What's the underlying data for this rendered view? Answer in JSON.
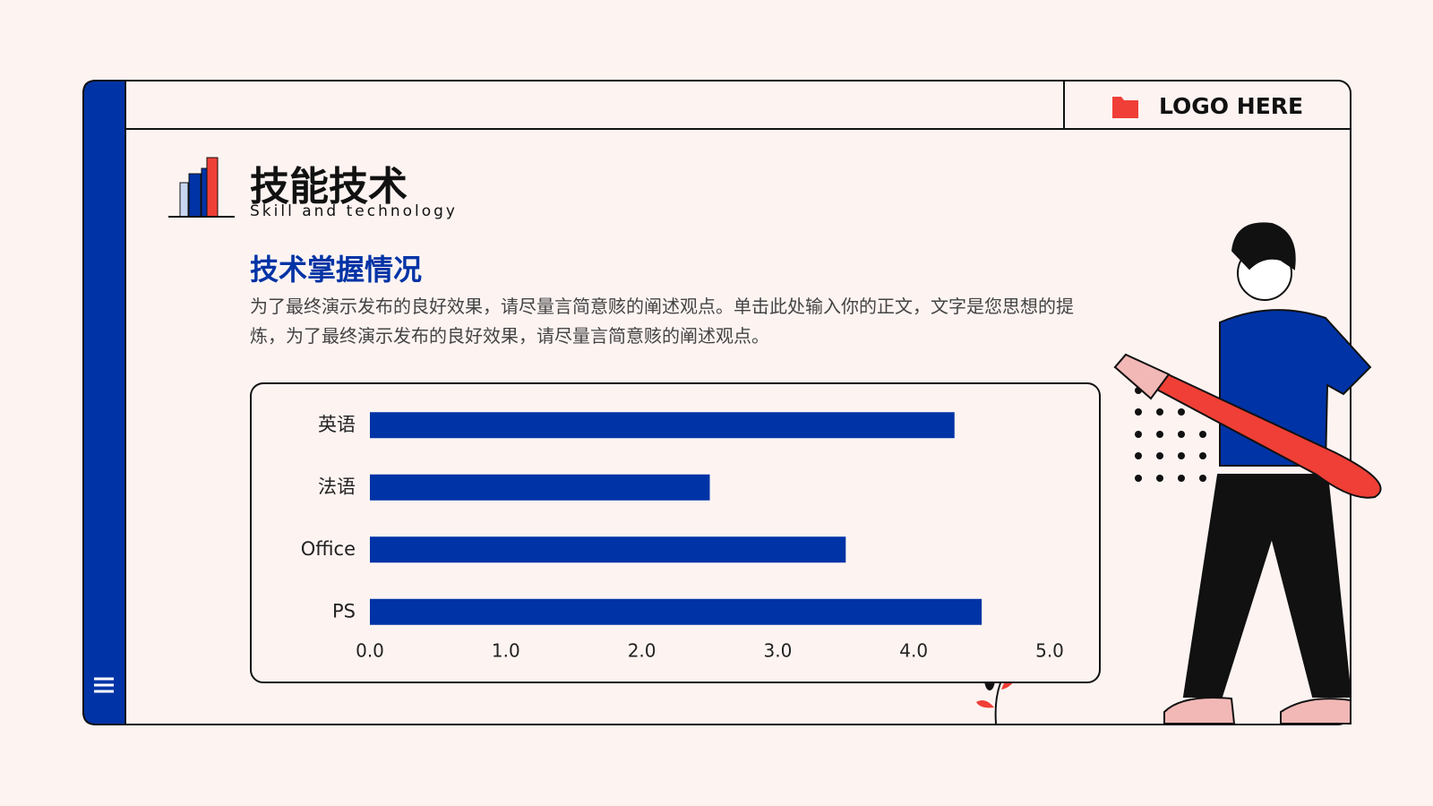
{
  "header": {
    "title": "技能技术",
    "subtitle": "Skill and technology",
    "logo": "LOGO HERE"
  },
  "content": {
    "heading": "技术掌握情况",
    "body": "为了最终演示发布的良好效果，请尽量言简意赅的阐述观点。单击此处输入你的正文，文字是您思想的提炼，为了最终演示发布的良好效果，请尽量言简意赅的阐述观点。"
  },
  "chart_data": {
    "type": "bar",
    "orientation": "horizontal",
    "color": "#0033a6",
    "categories": [
      "英语",
      "法语",
      "Office",
      "PS"
    ],
    "values": [
      4.3,
      2.5,
      3.5,
      4.5
    ],
    "xlim": [
      0,
      5
    ],
    "xticks": [
      {
        "value": 0,
        "label": "0.0"
      },
      {
        "value": 1,
        "label": "1.0"
      },
      {
        "value": 2,
        "label": "2.0"
      },
      {
        "value": 3,
        "label": "3.0"
      },
      {
        "value": 4,
        "label": "4.0"
      },
      {
        "value": 5,
        "label": "5.0"
      }
    ],
    "grid": false
  }
}
